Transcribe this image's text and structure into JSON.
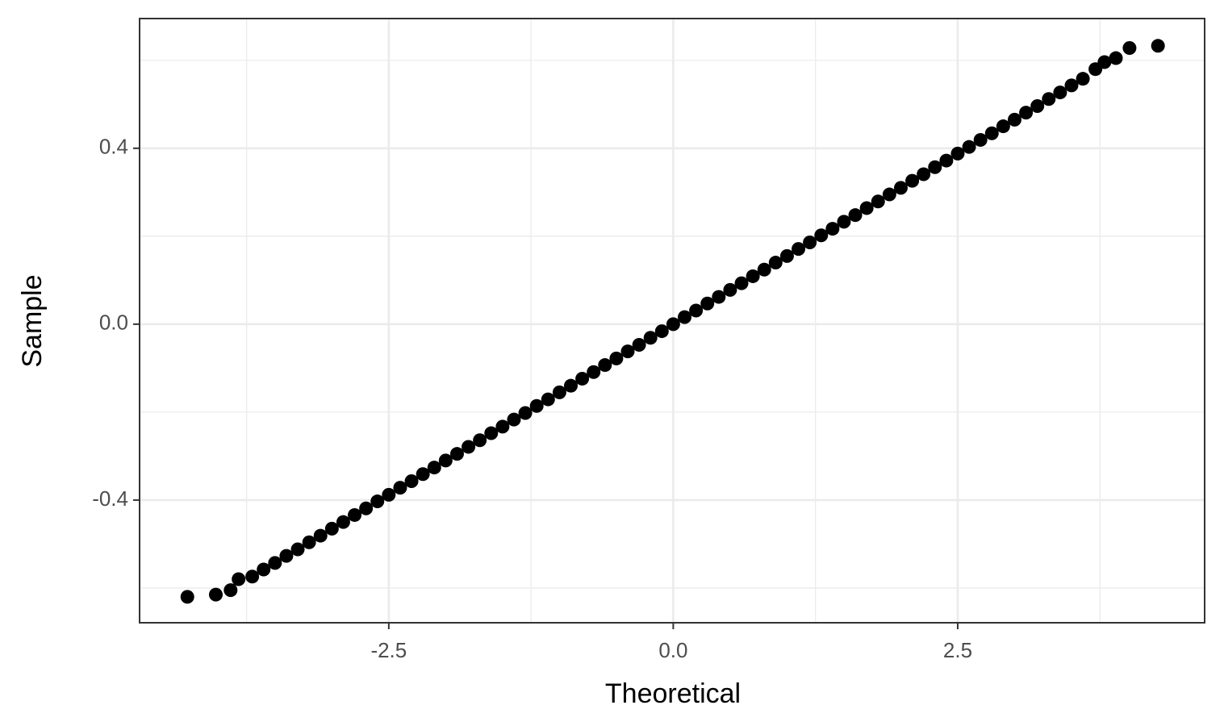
{
  "chart_data": {
    "type": "scatter",
    "x_label": "Theoretical",
    "y_label": "Sample",
    "x": [
      -4.27,
      -4.02,
      -3.89,
      -3.82,
      -3.7,
      -3.6,
      -3.5,
      -3.4,
      -3.3,
      -3.2,
      -3.1,
      -3.0,
      -2.9,
      -2.8,
      -2.7,
      -2.6,
      -2.5,
      -2.4,
      -2.3,
      -2.2,
      -2.1,
      -2.0,
      -1.9,
      -1.8,
      -1.7,
      -1.6,
      -1.5,
      -1.4,
      -1.3,
      -1.2,
      -1.1,
      -1.0,
      -0.9,
      -0.8,
      -0.7,
      -0.6,
      -0.5,
      -0.4,
      -0.3,
      -0.2,
      -0.1,
      0,
      0.1,
      0.2,
      0.3,
      0.4,
      0.5,
      0.6,
      0.7,
      0.8,
      0.9,
      1.0,
      1.1,
      1.2,
      1.3,
      1.4,
      1.5,
      1.6,
      1.7,
      1.8,
      1.9,
      2.0,
      2.1,
      2.2,
      2.3,
      2.4,
      2.5,
      2.6,
      2.7,
      2.8,
      2.9,
      3.0,
      3.1,
      3.2,
      3.3,
      3.4,
      3.5,
      3.6,
      3.71,
      3.79,
      3.89,
      4.01,
      4.26
    ],
    "series": [
      {
        "color": "#000000",
        "values": [
          -0.62,
          -0.615,
          -0.605,
          -0.58,
          -0.574,
          -0.558,
          -0.543,
          -0.527,
          -0.512,
          -0.496,
          -0.481,
          -0.465,
          -0.45,
          -0.434,
          -0.419,
          -0.403,
          -0.388,
          -0.372,
          -0.357,
          -0.341,
          -0.326,
          -0.31,
          -0.295,
          -0.279,
          -0.264,
          -0.248,
          -0.233,
          -0.217,
          -0.202,
          -0.186,
          -0.171,
          -0.155,
          -0.14,
          -0.124,
          -0.109,
          -0.093,
          -0.078,
          -0.062,
          -0.047,
          -0.031,
          -0.016,
          0,
          0.016,
          0.031,
          0.047,
          0.062,
          0.078,
          0.093,
          0.109,
          0.124,
          0.14,
          0.155,
          0.171,
          0.186,
          0.202,
          0.217,
          0.233,
          0.248,
          0.264,
          0.279,
          0.295,
          0.31,
          0.326,
          0.341,
          0.357,
          0.372,
          0.388,
          0.403,
          0.419,
          0.434,
          0.45,
          0.465,
          0.481,
          0.496,
          0.512,
          0.527,
          0.543,
          0.558,
          0.58,
          0.596,
          0.605,
          0.628,
          0.633
        ]
      }
    ],
    "xlim": [
      -4.69,
      4.67
    ],
    "ylim": [
      -0.679,
      0.695
    ],
    "xticks": [
      -2.5,
      {
        "value": 0,
        "label": "0.0"
      },
      2.5
    ],
    "yticks": [
      -0.4,
      {
        "value": 0,
        "label": "0.0"
      },
      0.4
    ],
    "x_minor_grid": [
      -3.75,
      -1.25,
      1.25,
      3.75
    ],
    "y_minor_grid": [
      -0.6,
      -0.2,
      0.2,
      0.6
    ],
    "grid": true
  }
}
